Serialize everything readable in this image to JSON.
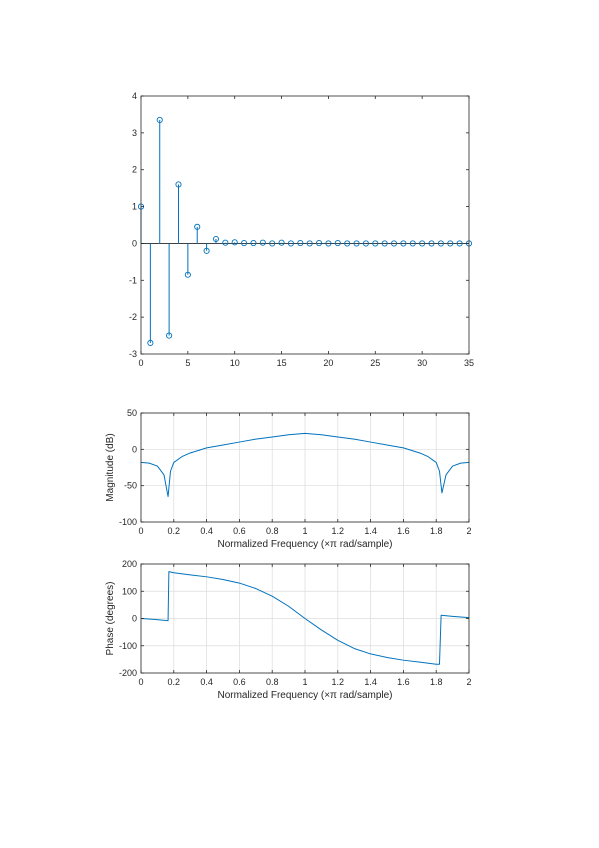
{
  "colors": {
    "series": "#0072bd",
    "axis": "#262626",
    "grid": "#dcdcdc",
    "background": "#ffffff"
  },
  "chart_data": [
    {
      "type": "stem",
      "xlim": [
        0,
        35
      ],
      "ylim": [
        -3,
        4
      ],
      "x_ticks": [
        "0",
        "5",
        "10",
        "15",
        "20",
        "25",
        "30",
        "35"
      ],
      "y_ticks": [
        "-3",
        "-2",
        "-1",
        "0",
        "1",
        "2",
        "3",
        "4"
      ],
      "marker": "circle",
      "grid": false,
      "points": [
        [
          0,
          1.0
        ],
        [
          1,
          -2.7
        ],
        [
          2,
          3.35
        ],
        [
          3,
          -2.5
        ],
        [
          4,
          1.6
        ],
        [
          5,
          -0.85
        ],
        [
          6,
          0.45
        ],
        [
          7,
          -0.2
        ],
        [
          8,
          0.12
        ],
        [
          9,
          0.02
        ],
        [
          10,
          0.03
        ],
        [
          11,
          0.01
        ],
        [
          12,
          0.01
        ],
        [
          13,
          0.02
        ],
        [
          14,
          0.0
        ],
        [
          15,
          0.02
        ],
        [
          16,
          0.0
        ],
        [
          17,
          0.01
        ],
        [
          18,
          0.0
        ],
        [
          19,
          0.01
        ],
        [
          20,
          0.0
        ],
        [
          21,
          0.01
        ],
        [
          22,
          0.0
        ],
        [
          23,
          0.0
        ],
        [
          24,
          0.0
        ],
        [
          25,
          0.0
        ],
        [
          26,
          0.0
        ],
        [
          27,
          0.0
        ],
        [
          28,
          0.0
        ],
        [
          29,
          0.0
        ],
        [
          30,
          0.0
        ],
        [
          31,
          0.0
        ],
        [
          32,
          0.0
        ],
        [
          33,
          0.0
        ],
        [
          34,
          0.0
        ],
        [
          35,
          0.0
        ]
      ]
    },
    {
      "type": "line",
      "xlabel": "Normalized Frequency  (×π rad/sample)",
      "ylabel": "Magnitude (dB)",
      "xlim": [
        0,
        2
      ],
      "ylim": [
        -100,
        50
      ],
      "x_ticks": [
        "0",
        "0.2",
        "0.4",
        "0.6",
        "0.8",
        "1",
        "1.2",
        "1.4",
        "1.6",
        "1.8",
        "2"
      ],
      "y_ticks": [
        "-100",
        "-50",
        "0",
        "50"
      ],
      "grid": true,
      "points": [
        [
          0,
          -18
        ],
        [
          0.05,
          -19
        ],
        [
          0.1,
          -23
        ],
        [
          0.14,
          -35
        ],
        [
          0.165,
          -65
        ],
        [
          0.18,
          -30
        ],
        [
          0.2,
          -18
        ],
        [
          0.25,
          -10
        ],
        [
          0.3,
          -5
        ],
        [
          0.4,
          2
        ],
        [
          0.5,
          6
        ],
        [
          0.6,
          10
        ],
        [
          0.7,
          14
        ],
        [
          0.8,
          17
        ],
        [
          0.9,
          20
        ],
        [
          1.0,
          22
        ],
        [
          1.1,
          20
        ],
        [
          1.2,
          17
        ],
        [
          1.3,
          14
        ],
        [
          1.4,
          10
        ],
        [
          1.5,
          6
        ],
        [
          1.6,
          2
        ],
        [
          1.7,
          -5
        ],
        [
          1.75,
          -10
        ],
        [
          1.8,
          -18
        ],
        [
          1.82,
          -30
        ],
        [
          1.835,
          -60
        ],
        [
          1.86,
          -35
        ],
        [
          1.9,
          -23
        ],
        [
          1.95,
          -19
        ],
        [
          2.0,
          -18
        ]
      ]
    },
    {
      "type": "line",
      "xlabel": "Normalized Frequency  (×π rad/sample)",
      "ylabel": "Phase (degrees)",
      "xlim": [
        0,
        2
      ],
      "ylim": [
        -200,
        200
      ],
      "x_ticks": [
        "0",
        "0.2",
        "0.4",
        "0.6",
        "0.8",
        "1",
        "1.2",
        "1.4",
        "1.6",
        "1.8",
        "2"
      ],
      "y_ticks": [
        "-200",
        "-100",
        "0",
        "100",
        "200"
      ],
      "grid": true,
      "points": [
        [
          0,
          0
        ],
        [
          0.08,
          -3
        ],
        [
          0.16,
          -8
        ],
        [
          0.165,
          -8
        ],
        [
          0.17,
          172
        ],
        [
          0.2,
          168
        ],
        [
          0.3,
          160
        ],
        [
          0.4,
          153
        ],
        [
          0.5,
          143
        ],
        [
          0.6,
          130
        ],
        [
          0.7,
          110
        ],
        [
          0.8,
          82
        ],
        [
          0.9,
          45
        ],
        [
          1.0,
          0
        ],
        [
          1.1,
          -42
        ],
        [
          1.2,
          -80
        ],
        [
          1.3,
          -110
        ],
        [
          1.4,
          -130
        ],
        [
          1.5,
          -143
        ],
        [
          1.6,
          -153
        ],
        [
          1.7,
          -160
        ],
        [
          1.8,
          -168
        ],
        [
          1.82,
          -168
        ],
        [
          1.83,
          12
        ],
        [
          1.9,
          8
        ],
        [
          2.0,
          3
        ]
      ]
    }
  ]
}
